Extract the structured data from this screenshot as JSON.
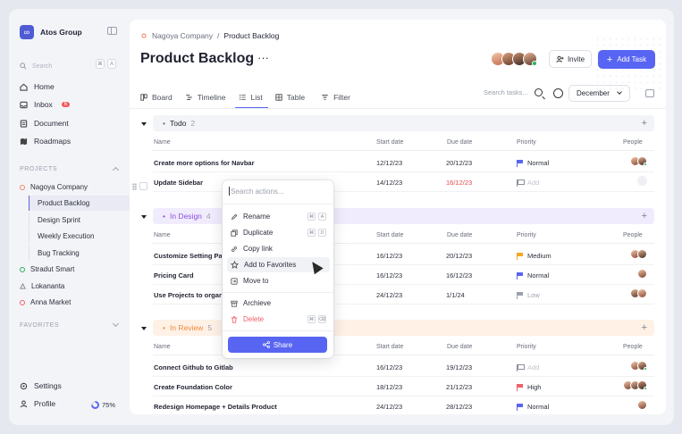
{
  "brand": {
    "name": "Atos Group",
    "logo_glyph": "∞"
  },
  "search": {
    "placeholder": "Search",
    "kbd1": "⌘",
    "kbd2": "A"
  },
  "nav": {
    "home": "Home",
    "inbox": "Inbox",
    "inbox_badge": "6",
    "document": "Document",
    "roadmaps": "Roadmaps"
  },
  "projects": {
    "heading": "PROJECTS",
    "items": [
      {
        "label": "Nagoya Company",
        "color": "#f0885f"
      },
      {
        "label": "Stradut Smart",
        "color": "#26b45a"
      },
      {
        "label": "Lokananta",
        "color": "#8a8f9c"
      },
      {
        "label": "Anna Market",
        "color": "#f0616a"
      }
    ],
    "sub": [
      "Product Backlog",
      "Design Sprint",
      "Weekly Execution",
      "Bug Tracking"
    ]
  },
  "favorites": {
    "heading": "FAVORITES"
  },
  "bottom": {
    "settings": "Settings",
    "profile": "Profile",
    "progress": "75%"
  },
  "breadcrumb": {
    "parent": "Nagoya Company",
    "separator": "/",
    "current": "Product Backlog"
  },
  "page": {
    "title": "Product Backlog",
    "more": "···"
  },
  "actions": {
    "invite": "Invite",
    "add_task": "Add Task"
  },
  "views": {
    "tabs": [
      "Board",
      "Timeline",
      "List",
      "Table"
    ],
    "active": "List",
    "filter": "Filter",
    "search_placeholder": "Search tasks...",
    "month": "December"
  },
  "columns": {
    "name": "Name",
    "start": "Start date",
    "due": "Due date",
    "priority": "Priority",
    "people": "People"
  },
  "groups": [
    {
      "label": "Todo",
      "count": "2",
      "color": "#6a6f7c",
      "bg": "#f3f4f7",
      "rows": [
        {
          "name": "Create more options for Navbar",
          "start": "12/12/23",
          "due": "20/12/23",
          "priority": "Normal",
          "pcolor": "#5865f2"
        },
        {
          "name": "Update Sidebar",
          "start": "14/12/23",
          "due": "16/12/23",
          "priority": "Add",
          "pcolor": "#8a8f9c"
        }
      ]
    },
    {
      "label": "In Design",
      "count": "4",
      "color": "#8b4fe0",
      "bg": "#f1ecfd",
      "rows": [
        {
          "name": "Customize Setting Pa",
          "start": "16/12/23",
          "due": "20/12/23",
          "priority": "Medium",
          "pcolor": "#f5a623"
        },
        {
          "name": "Pricing Card",
          "start": "16/12/23",
          "due": "16/12/23",
          "priority": "Normal",
          "pcolor": "#5865f2"
        },
        {
          "name": "Use Projects to organ",
          "start": "24/12/23",
          "due": "1/1/24",
          "priority": "Low",
          "pcolor": "#9aa0ad"
        }
      ]
    },
    {
      "label": "In Review",
      "count": "5",
      "color": "#f08a3c",
      "bg": "#fff1e6",
      "rows": [
        {
          "name": "Connect Github to Gitlab",
          "start": "16/12/23",
          "due": "19/12/23",
          "priority": "Add",
          "pcolor": "#8a8f9c"
        },
        {
          "name": "Create Foundation Color",
          "start": "18/12/23",
          "due": "21/12/23",
          "priority": "High",
          "pcolor": "#f0616a"
        },
        {
          "name": "Redesign Homepage + Details Product",
          "start": "24/12/23",
          "due": "28/12/23",
          "priority": "Normal",
          "pcolor": "#5865f2"
        }
      ]
    }
  ],
  "context_menu": {
    "search_placeholder": "Search actions...",
    "rename": "Rename",
    "rename_k1": "⌘",
    "rename_k2": "A",
    "duplicate": "Duplicate",
    "duplicate_k1": "⌘",
    "duplicate_k2": "D",
    "copy_link": "Copy link",
    "add_favorites": "Add to Favorites",
    "move_to": "Move to",
    "archive": "Archieve",
    "delete": "Delete",
    "delete_k1": "⌘",
    "delete_k2": "⌫",
    "share": "Share"
  },
  "colors": {
    "accent": "#5865f2",
    "danger": "#f0616a",
    "overdue": "#e5484d"
  }
}
